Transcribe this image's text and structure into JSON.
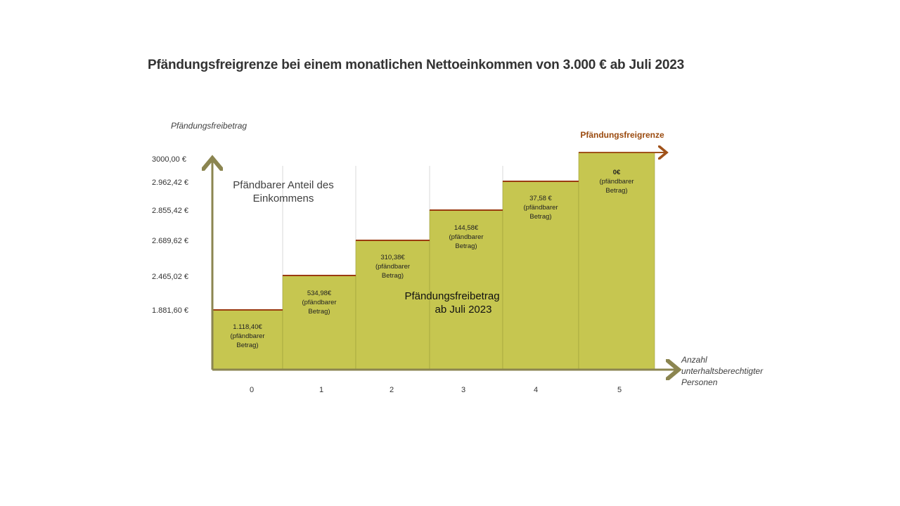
{
  "page": {
    "title": "Pfändungsfreigrenze bei einem monatlichen Nettoeinkommen von 3.000 € ab Juli 2023"
  },
  "colors": {
    "bar_fill": "#c6c650",
    "bar_edge": "#9ea13a",
    "step_line": "#9a3a10",
    "axis": "#8b8550",
    "grid": "#d9d9d9",
    "limit_arrow": "#a0521a",
    "limit_text": "#9a4a0e"
  },
  "chart_data": {
    "type": "bar",
    "title": "Pfändungsfreigrenze bei einem monatlichen Nettoeinkommen von 3.000 € ab Juli 2023",
    "ylabel": "Pfändungsfreibetrag",
    "xlabel_lines": [
      "Anzahl",
      "unterhaltsberechtigter",
      "Personen"
    ],
    "categories": [
      "0",
      "1",
      "2",
      "3",
      "4",
      "5"
    ],
    "values": [
      1881.6,
      2465.02,
      2689.62,
      2855.42,
      2962.42,
      3000.0
    ],
    "y_tick_labels": [
      "3000,00 €",
      "2.962,42 €",
      "2.855,42 €",
      "2.689,62 €",
      "2.465,02 €",
      "1.881,60 €"
    ],
    "y_tick_values": [
      3000.0,
      2962.42,
      2855.42,
      2689.62,
      2465.02,
      1881.6
    ],
    "bar_labels": [
      {
        "amount": "1.118,40€",
        "line2": "(pfändbarer",
        "line3": "Betrag)",
        "bold": false
      },
      {
        "amount": "534,98€",
        "line2": "(pfändbarer",
        "line3": "Betrag)",
        "bold": false
      },
      {
        "amount": "310,38€",
        "line2": "(pfändbarer",
        "line3": "Betrag)",
        "bold": false
      },
      {
        "amount": "144,58€",
        "line2": "(pfändbarer",
        "line3": "Betrag)",
        "bold": false
      },
      {
        "amount": "37,58 €",
        "line2": "(pfändbarer",
        "line3": "Betrag)",
        "bold": false
      },
      {
        "amount": "0€",
        "line2": "(pfändbarer",
        "line3": "Betrag)",
        "bold": true
      }
    ],
    "annotations": {
      "top_region": [
        "Pfändbarer Anteil des",
        "Einkommens"
      ],
      "bar_region": [
        "Pfändungsfreibetrag",
        "ab Juli 2023"
      ],
      "limit": "Pfändungsfreigrenze"
    },
    "grid": false
  }
}
